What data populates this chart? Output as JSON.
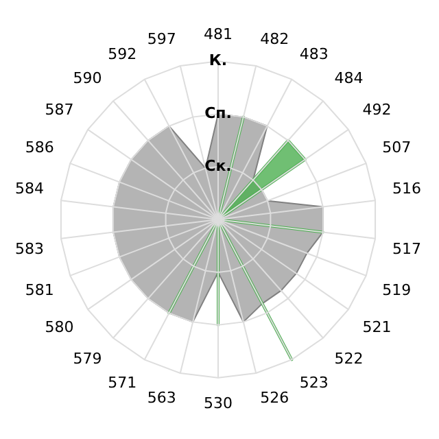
{
  "chart_data": {
    "type": "radar",
    "relative": false,
    "categories": [
      "481",
      "482",
      "483",
      "484",
      "492",
      "507",
      "516",
      "517",
      "519",
      "521",
      "522",
      "523",
      "526",
      "530",
      "563",
      "571",
      "579",
      "580",
      "581",
      "583",
      "584",
      "586",
      "587",
      "590",
      "592",
      "597"
    ],
    "ylim": [
      0,
      3
    ],
    "yticks": [
      {
        "value": 1,
        "label": "Ск."
      },
      {
        "value": 2,
        "label": "Сп."
      },
      {
        "value": 3,
        "label": "К."
      }
    ],
    "grid": true,
    "legend": false,
    "series": [
      {
        "color": "#b4b4b4",
        "values": [
          2,
          2,
          2,
          1,
          1,
          1,
          2,
          2,
          1.8,
          1.8,
          1.8,
          1.8,
          2,
          1,
          2,
          2,
          2,
          2,
          2,
          2,
          2,
          2,
          2,
          2,
          2,
          1
        ]
      },
      {
        "color": "#4caf50",
        "values": [
          0,
          2,
          0,
          2,
          2,
          0,
          0,
          2,
          0,
          0,
          0,
          3,
          0,
          2,
          0,
          2,
          0,
          0,
          0,
          0,
          0,
          0,
          0,
          0,
          0,
          0
        ]
      }
    ]
  }
}
